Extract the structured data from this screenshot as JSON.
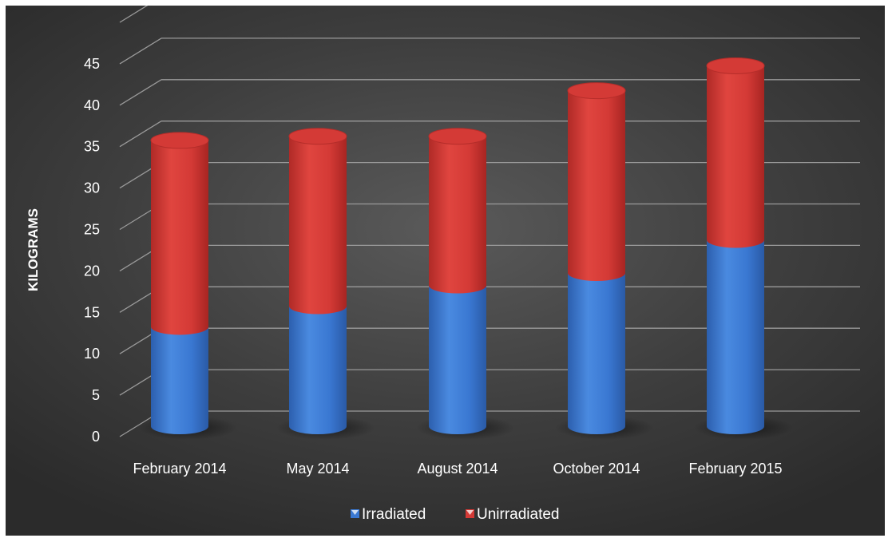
{
  "chart_data": {
    "type": "bar",
    "stacked": true,
    "style": "3d-cylinder",
    "categories": [
      "February 2014",
      "May 2014",
      "August 2014",
      "October 2014",
      "February 2015"
    ],
    "series": [
      {
        "name": "Irradiated",
        "values": [
          12,
          14.5,
          17,
          18.5,
          22.5
        ],
        "color": "#3a78d2"
      },
      {
        "name": "Unirradiated",
        "values": [
          22.5,
          20.5,
          18,
          22,
          21
        ],
        "color": "#d43a36"
      }
    ],
    "title": "",
    "xlabel": "",
    "ylabel": "KILOGRAMS",
    "ylim": [
      0,
      50
    ],
    "yticks": [
      0,
      5,
      10,
      15,
      20,
      25,
      30,
      35,
      40,
      45
    ],
    "grid": true,
    "legend_position": "bottom",
    "background": "#3d3d3d"
  }
}
